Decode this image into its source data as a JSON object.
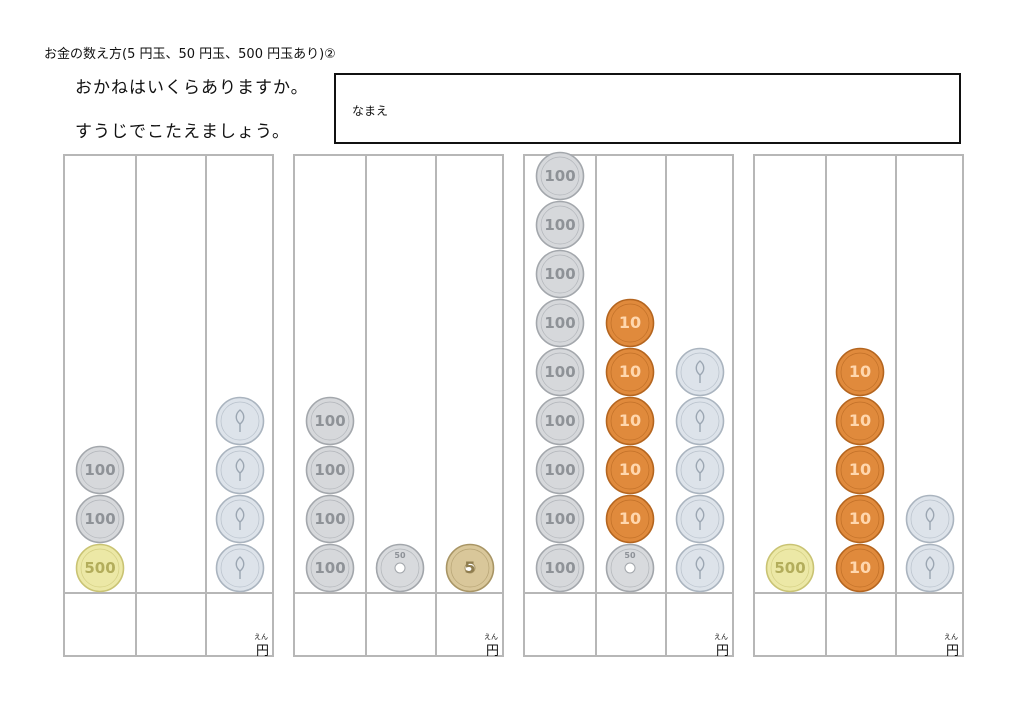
{
  "header": {
    "title": "お金の数え方(5 円玉、50 円玉、500 円玉あり)②",
    "instruction_line1": "おかねはいくらありますか。",
    "instruction_line2": "すうじでこたえましょう。",
    "name_label": "なまえ"
  },
  "answer_unit": {
    "ruby": "えん",
    "label": "円"
  },
  "coin_styles": {
    "1": {
      "fill": "#dde3ea",
      "ring": "#aab4bf",
      "text": "#9ba6b2"
    },
    "5": {
      "fill": "#d9c79a",
      "ring": "#a89565",
      "text": "#8f7d4f"
    },
    "10": {
      "fill": "#e08a3c",
      "ring": "#b4651f",
      "text": "#ffd7ae"
    },
    "50": {
      "fill": "#d8dadd",
      "ring": "#a2a6ab",
      "text": "#8d9197"
    },
    "100": {
      "fill": "#d6d8db",
      "ring": "#a3a7ac",
      "text": "#8e9297"
    },
    "500": {
      "fill": "#ece8a6",
      "ring": "#c9c373",
      "text": "#b3ad5b"
    }
  },
  "problems": [
    {
      "columns": [
        [
          500,
          100,
          100
        ],
        [],
        [
          1,
          1,
          1,
          1
        ]
      ]
    },
    {
      "columns": [
        [
          100,
          100,
          100,
          100
        ],
        [
          50
        ],
        [
          5
        ]
      ]
    },
    {
      "columns": [
        [
          100,
          100,
          100,
          100,
          100,
          100,
          100,
          100,
          100
        ],
        [
          50,
          10,
          10,
          10,
          10,
          10
        ],
        [
          1,
          1,
          1,
          1,
          1
        ]
      ]
    },
    {
      "columns": [
        [
          500
        ],
        [
          10,
          10,
          10,
          10,
          10
        ],
        [
          1,
          1
        ]
      ]
    }
  ]
}
